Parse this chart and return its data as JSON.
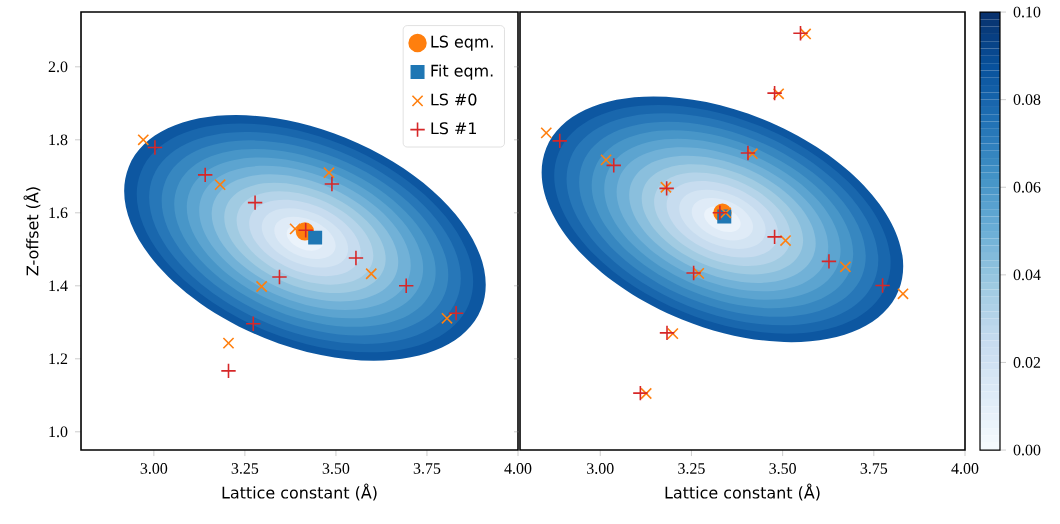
{
  "chart_data": [
    {
      "type": "scatter",
      "xlabel": "Lattice constant (Å)",
      "ylabel": "Z-offset (Å)",
      "xlim": [
        2.8,
        4.0
      ],
      "ylim": [
        0.95,
        2.15
      ],
      "xticks": [
        {
          "value": 3.0,
          "label": "3.00"
        },
        {
          "value": 3.25,
          "label": "3.25"
        },
        {
          "value": 3.5,
          "label": "3.50"
        },
        {
          "value": 3.75,
          "label": "3.75"
        },
        {
          "value": 4.0,
          "label": "4.00"
        }
      ],
      "yticks": [
        {
          "value": 1.0,
          "label": "1.0"
        },
        {
          "value": 1.2,
          "label": "1.2"
        },
        {
          "value": 1.4,
          "label": "1.4"
        },
        {
          "value": 1.6,
          "label": "1.6"
        },
        {
          "value": 1.8,
          "label": "1.8"
        },
        {
          "value": 2.0,
          "label": "2.0"
        }
      ],
      "legend": "top right",
      "series": [
        {
          "name": "LS eqm.",
          "color": "#ff7f0e",
          "marker": "circle",
          "x": [
            3.415
          ],
          "values": [
            1.549
          ]
        },
        {
          "name": "Fit eqm.",
          "color": "#1f77b4",
          "marker": "square",
          "x": [
            3.443
          ],
          "values": [
            1.532
          ]
        },
        {
          "name": "LS #0",
          "color": "#ff7f0e",
          "marker": "cross",
          "x": [
            2.971,
            3.182,
            3.481,
            3.388,
            3.296,
            3.205,
            3.597,
            3.805
          ],
          "values": [
            1.8,
            1.677,
            1.71,
            1.556,
            1.398,
            1.243,
            1.433,
            1.311
          ]
        },
        {
          "name": "LS #1",
          "color": "#d62728",
          "marker": "plus",
          "x": [
            3.003,
            3.141,
            3.278,
            3.489,
            3.417,
            3.345,
            3.273,
            3.205,
            3.555,
            3.693,
            3.83
          ],
          "values": [
            1.779,
            1.704,
            1.628,
            1.679,
            1.552,
            1.424,
            1.296,
            1.167,
            1.476,
            1.4,
            1.325
          ]
        }
      ]
    },
    {
      "type": "scatter",
      "xlabel": "Lattice constant (Å)",
      "xlim": [
        2.78,
        4.0
      ],
      "ylim": [
        0.95,
        2.15
      ],
      "xticks": [
        {
          "value": 3.0,
          "label": "3.00"
        },
        {
          "value": 3.25,
          "label": "3.25"
        },
        {
          "value": 3.5,
          "label": "3.50"
        },
        {
          "value": 3.75,
          "label": "3.75"
        },
        {
          "value": 4.0,
          "label": "4.00"
        }
      ],
      "yticks": [
        {
          "value": 1.0,
          "label": null
        },
        {
          "value": 1.2,
          "label": null
        },
        {
          "value": 1.4,
          "label": null
        },
        {
          "value": 1.6,
          "label": null
        },
        {
          "value": 1.8,
          "label": null
        },
        {
          "value": 2.0,
          "label": null
        }
      ],
      "tick_labels": "x",
      "clim": [
        0,
        0.1
      ],
      "cticks": [
        {
          "value": 0,
          "label": "0.00"
        },
        {
          "value": 0.02,
          "label": "0.02"
        },
        {
          "value": 0.04,
          "label": "0.04"
        },
        {
          "value": 0.06,
          "label": "0.06"
        },
        {
          "value": 0.08,
          "label": "0.08"
        },
        {
          "value": 0.1,
          "label": "0.10"
        }
      ],
      "series": [
        {
          "color": "#ff7f0e",
          "marker": "circle",
          "x": [
            3.335
          ],
          "values": [
            1.6
          ]
        },
        {
          "color": "#1f77b4",
          "marker": "square",
          "x": [
            3.34
          ],
          "values": [
            1.59
          ]
        },
        {
          "color": "#ff7f0e",
          "marker": "cross",
          "x": [
            2.852,
            3.016,
            3.18,
            3.344,
            3.417,
            3.489,
            3.563,
            3.508,
            3.672,
            3.83,
            3.27,
            3.199,
            3.126
          ],
          "values": [
            1.819,
            1.745,
            1.67,
            1.6,
            1.762,
            1.926,
            2.09,
            1.524,
            1.452,
            1.378,
            1.434,
            1.269,
            1.105
          ]
        },
        {
          "color": "#d62728",
          "marker": "plus",
          "x": [
            2.889,
            3.037,
            3.182,
            3.328,
            3.405,
            3.478,
            3.549,
            3.478,
            3.627,
            3.774,
            3.256,
            3.183,
            3.11
          ],
          "values": [
            1.797,
            1.73,
            1.667,
            1.6,
            1.764,
            1.928,
            2.092,
            1.534,
            1.467,
            1.401,
            1.435,
            1.271,
            1.106
          ]
        }
      ]
    }
  ]
}
